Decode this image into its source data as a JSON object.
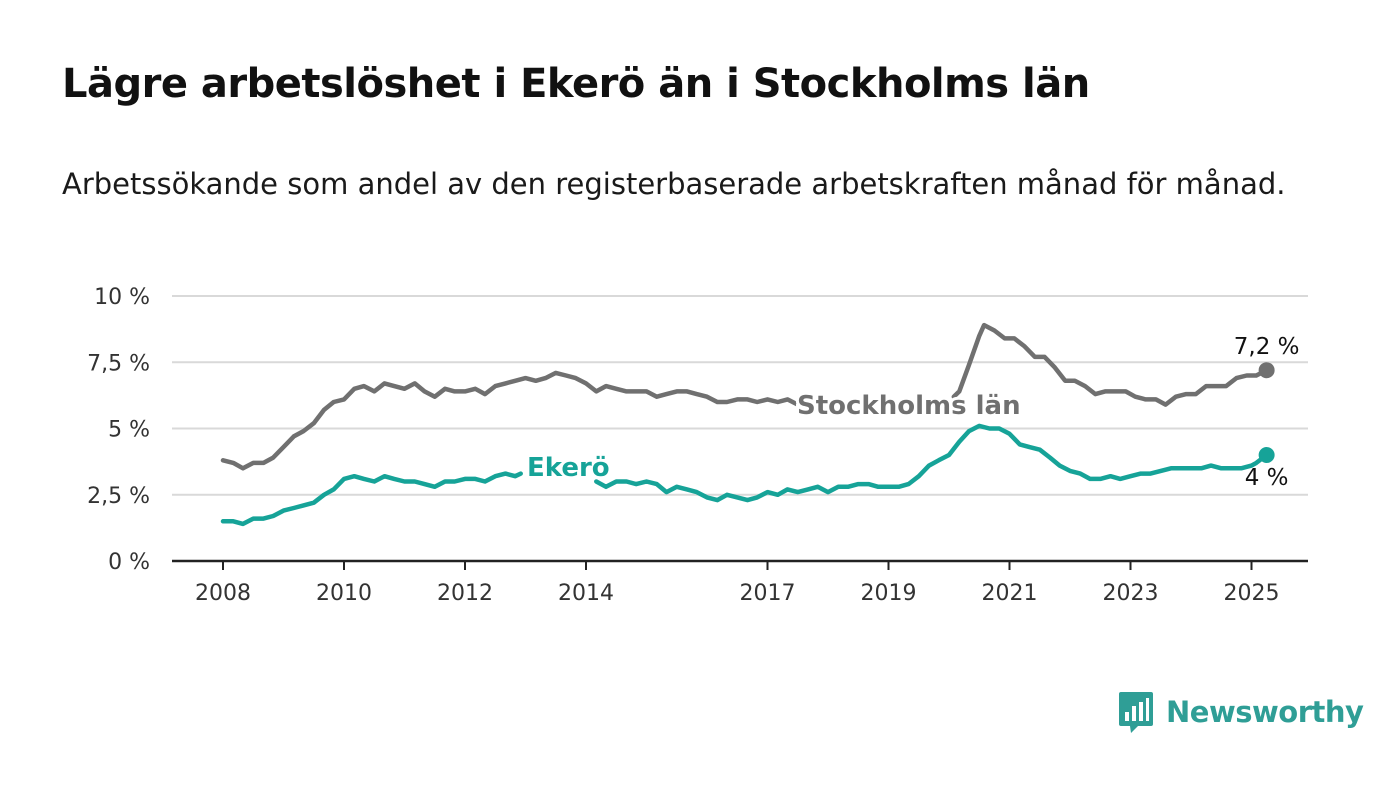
{
  "header": {
    "title": "Lägre arbetslöshet i Ekerö än i Stockholms län",
    "subtitle": "Arbetssökande som andel av den registerbaserade arbetskraften månad för månad."
  },
  "brand": {
    "name": "Newsworthy",
    "logo_icon": "bar-chart-speech-bubble-icon"
  },
  "colors": {
    "stockholm": "#707070",
    "ekero": "#16a398",
    "grid": "#d9d9d9",
    "axis": "#222222",
    "brand": "#2f9e96"
  },
  "chart_data": {
    "type": "line",
    "title": "Lägre arbetslöshet i Ekerö än i Stockholms län",
    "subtitle": "Arbetssökande som andel av den registerbaserade arbetskraften månad för månad.",
    "xlabel": "",
    "ylabel": "",
    "xlim": [
      2008,
      2025.6
    ],
    "ylim": [
      0,
      10
    ],
    "x_ticks": [
      2008,
      2010,
      2012,
      2014,
      2017,
      2019,
      2021,
      2023,
      2025
    ],
    "x_tick_labels": [
      "2008",
      "2010",
      "2012",
      "2014",
      "2017",
      "2019",
      "2021",
      "2023",
      "2025"
    ],
    "y_ticks": [
      0,
      2.5,
      5,
      7.5,
      10
    ],
    "y_tick_labels": [
      "0 %",
      "2,5 %",
      "5 %",
      "7,5 %",
      "10 %"
    ],
    "grid": true,
    "legend": "inline labels",
    "series": [
      {
        "name": "Stockholms län",
        "end_label": "7,2 %",
        "segments": [
          [
            [
              2008.0,
              3.8
            ],
            [
              2008.17,
              3.7
            ],
            [
              2008.33,
              3.5
            ],
            [
              2008.5,
              3.7
            ],
            [
              2008.67,
              3.7
            ],
            [
              2008.83,
              3.9
            ],
            [
              2009.0,
              4.3
            ],
            [
              2009.17,
              4.7
            ],
            [
              2009.33,
              4.9
            ],
            [
              2009.5,
              5.2
            ],
            [
              2009.67,
              5.7
            ],
            [
              2009.83,
              6.0
            ],
            [
              2010.0,
              6.1
            ],
            [
              2010.17,
              6.5
            ],
            [
              2010.33,
              6.6
            ],
            [
              2010.5,
              6.4
            ],
            [
              2010.67,
              6.7
            ],
            [
              2010.83,
              6.6
            ],
            [
              2011.0,
              6.5
            ],
            [
              2011.17,
              6.7
            ],
            [
              2011.33,
              6.4
            ],
            [
              2011.5,
              6.2
            ],
            [
              2011.67,
              6.5
            ],
            [
              2011.83,
              6.4
            ],
            [
              2012.0,
              6.4
            ],
            [
              2012.17,
              6.5
            ],
            [
              2012.33,
              6.3
            ],
            [
              2012.5,
              6.6
            ],
            [
              2012.67,
              6.7
            ],
            [
              2012.83,
              6.8
            ],
            [
              2013.0,
              6.9
            ],
            [
              2013.17,
              6.8
            ],
            [
              2013.33,
              6.9
            ],
            [
              2013.5,
              7.1
            ],
            [
              2013.67,
              7.0
            ],
            [
              2013.83,
              6.9
            ],
            [
              2014.0,
              6.7
            ],
            [
              2014.17,
              6.4
            ],
            [
              2014.33,
              6.6
            ],
            [
              2014.5,
              6.5
            ],
            [
              2014.67,
              6.4
            ],
            [
              2014.83,
              6.4
            ],
            [
              2015.0,
              6.4
            ],
            [
              2015.17,
              6.2
            ],
            [
              2015.33,
              6.3
            ],
            [
              2015.5,
              6.4
            ],
            [
              2015.67,
              6.4
            ],
            [
              2015.83,
              6.3
            ],
            [
              2016.0,
              6.2
            ],
            [
              2016.17,
              6.0
            ],
            [
              2016.33,
              6.0
            ],
            [
              2016.5,
              6.1
            ],
            [
              2016.67,
              6.1
            ],
            [
              2016.83,
              6.0
            ],
            [
              2017.0,
              6.1
            ],
            [
              2017.17,
              6.0
            ],
            [
              2017.33,
              6.1
            ],
            [
              2017.5,
              5.9
            ],
            [
              2017.58,
              6.0
            ]
          ],
          [
            [
              2020.08,
              6.2
            ],
            [
              2020.17,
              6.4
            ],
            [
              2020.33,
              7.4
            ],
            [
              2020.5,
              8.5
            ],
            [
              2020.58,
              8.9
            ],
            [
              2020.75,
              8.7
            ],
            [
              2020.92,
              8.4
            ],
            [
              2021.08,
              8.4
            ],
            [
              2021.25,
              8.1
            ],
            [
              2021.42,
              7.7
            ],
            [
              2021.58,
              7.7
            ],
            [
              2021.75,
              7.3
            ],
            [
              2021.92,
              6.8
            ],
            [
              2022.08,
              6.8
            ],
            [
              2022.25,
              6.6
            ],
            [
              2022.42,
              6.3
            ],
            [
              2022.58,
              6.4
            ],
            [
              2022.75,
              6.4
            ],
            [
              2022.92,
              6.4
            ],
            [
              2023.08,
              6.2
            ],
            [
              2023.25,
              6.1
            ],
            [
              2023.42,
              6.1
            ],
            [
              2023.58,
              5.9
            ],
            [
              2023.75,
              6.2
            ],
            [
              2023.92,
              6.3
            ],
            [
              2024.08,
              6.3
            ],
            [
              2024.25,
              6.6
            ],
            [
              2024.42,
              6.6
            ],
            [
              2024.58,
              6.6
            ],
            [
              2024.75,
              6.9
            ],
            [
              2024.92,
              7.0
            ],
            [
              2025.08,
              7.0
            ],
            [
              2025.25,
              7.2
            ]
          ]
        ]
      },
      {
        "name": "Ekerö",
        "end_label": "4 %",
        "segments": [
          [
            [
              2008.0,
              1.5
            ],
            [
              2008.17,
              1.5
            ],
            [
              2008.33,
              1.4
            ],
            [
              2008.5,
              1.6
            ],
            [
              2008.67,
              1.6
            ],
            [
              2008.83,
              1.7
            ],
            [
              2009.0,
              1.9
            ],
            [
              2009.17,
              2.0
            ],
            [
              2009.33,
              2.1
            ],
            [
              2009.5,
              2.2
            ],
            [
              2009.67,
              2.5
            ],
            [
              2009.83,
              2.7
            ],
            [
              2010.0,
              3.1
            ],
            [
              2010.17,
              3.2
            ],
            [
              2010.33,
              3.1
            ],
            [
              2010.5,
              3.0
            ],
            [
              2010.67,
              3.2
            ],
            [
              2010.83,
              3.1
            ],
            [
              2011.0,
              3.0
            ],
            [
              2011.17,
              3.0
            ],
            [
              2011.33,
              2.9
            ],
            [
              2011.5,
              2.8
            ],
            [
              2011.67,
              3.0
            ],
            [
              2011.83,
              3.0
            ],
            [
              2012.0,
              3.1
            ],
            [
              2012.17,
              3.1
            ],
            [
              2012.33,
              3.0
            ],
            [
              2012.5,
              3.2
            ],
            [
              2012.67,
              3.3
            ],
            [
              2012.83,
              3.2
            ],
            [
              2012.92,
              3.3
            ]
          ],
          [
            [
              2014.17,
              3.0
            ],
            [
              2014.33,
              2.8
            ],
            [
              2014.5,
              3.0
            ],
            [
              2014.67,
              3.0
            ],
            [
              2014.83,
              2.9
            ],
            [
              2015.0,
              3.0
            ],
            [
              2015.17,
              2.9
            ],
            [
              2015.33,
              2.6
            ],
            [
              2015.5,
              2.8
            ],
            [
              2015.67,
              2.7
            ],
            [
              2015.83,
              2.6
            ],
            [
              2016.0,
              2.4
            ],
            [
              2016.17,
              2.3
            ],
            [
              2016.33,
              2.5
            ],
            [
              2016.5,
              2.4
            ],
            [
              2016.67,
              2.3
            ],
            [
              2016.83,
              2.4
            ],
            [
              2017.0,
              2.6
            ],
            [
              2017.17,
              2.5
            ],
            [
              2017.33,
              2.7
            ],
            [
              2017.5,
              2.6
            ],
            [
              2017.67,
              2.7
            ],
            [
              2017.83,
              2.8
            ],
            [
              2018.0,
              2.6
            ],
            [
              2018.17,
              2.8
            ],
            [
              2018.33,
              2.8
            ],
            [
              2018.5,
              2.9
            ],
            [
              2018.67,
              2.9
            ],
            [
              2018.83,
              2.8
            ],
            [
              2019.0,
              2.8
            ],
            [
              2019.17,
              2.8
            ],
            [
              2019.33,
              2.9
            ],
            [
              2019.5,
              3.2
            ],
            [
              2019.67,
              3.6
            ],
            [
              2019.83,
              3.8
            ],
            [
              2020.0,
              4.0
            ],
            [
              2020.17,
              4.5
            ],
            [
              2020.33,
              4.9
            ],
            [
              2020.5,
              5.1
            ],
            [
              2020.67,
              5.0
            ],
            [
              2020.83,
              5.0
            ],
            [
              2021.0,
              4.8
            ],
            [
              2021.17,
              4.4
            ],
            [
              2021.33,
              4.3
            ],
            [
              2021.5,
              4.2
            ],
            [
              2021.67,
              3.9
            ],
            [
              2021.83,
              3.6
            ],
            [
              2022.0,
              3.4
            ],
            [
              2022.17,
              3.3
            ],
            [
              2022.33,
              3.1
            ],
            [
              2022.5,
              3.1
            ],
            [
              2022.67,
              3.2
            ],
            [
              2022.83,
              3.1
            ],
            [
              2023.0,
              3.2
            ],
            [
              2023.17,
              3.3
            ],
            [
              2023.33,
              3.3
            ],
            [
              2023.5,
              3.4
            ],
            [
              2023.67,
              3.5
            ],
            [
              2023.83,
              3.5
            ],
            [
              2024.0,
              3.5
            ],
            [
              2024.17,
              3.5
            ],
            [
              2024.33,
              3.6
            ],
            [
              2024.5,
              3.5
            ],
            [
              2024.67,
              3.5
            ],
            [
              2024.83,
              3.5
            ],
            [
              2025.0,
              3.6
            ],
            [
              2025.08,
              3.7
            ],
            [
              2025.25,
              4.0
            ]
          ]
        ]
      }
    ]
  }
}
